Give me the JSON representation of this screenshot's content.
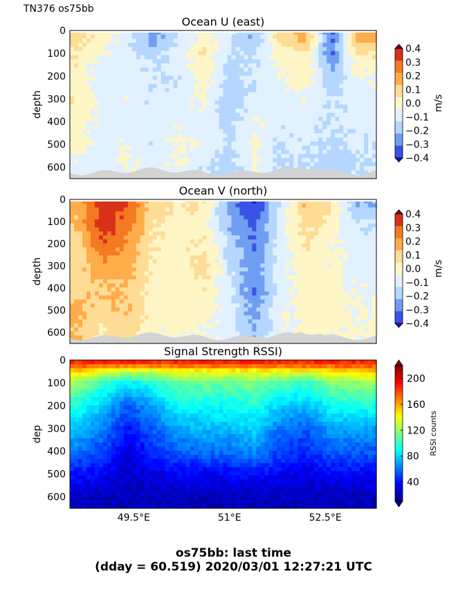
{
  "header_label": "TN376 os75bb",
  "caption": {
    "line1": "os75bb: last time",
    "line2": "(dday = 60.519) 2020/03/01 12:27:21 UTC"
  },
  "colors": {
    "topo_fill": "#d3d3d3",
    "rssi_colormap": "jet",
    "velocity_levels": [
      "#2a0ad6",
      "#3a52e6",
      "#6f9ef2",
      "#b5d7ff",
      "#e2f1ff",
      "#fff6c8",
      "#ffdc96",
      "#ffad4a",
      "#f47a22",
      "#d9301a",
      "#80040e"
    ]
  },
  "chart_data": [
    {
      "type": "heatmap",
      "title": "Ocean U (east)",
      "xlabel": "",
      "ylabel": "depth",
      "y_ticks": [
        "0",
        "100",
        "200",
        "300",
        "400",
        "500",
        "600"
      ],
      "y_tick_values": [
        0,
        100,
        200,
        300,
        400,
        500,
        600
      ],
      "ylim": [
        650,
        0
      ],
      "xlim": [
        48.5,
        53.3
      ],
      "x_ticks": [
        "49.5°E",
        "51°E",
        "52.5°E"
      ],
      "x_tick_values": [
        49.5,
        51.0,
        52.5
      ],
      "show_x_tick_labels": false,
      "colorbar": {
        "label": "m/s",
        "ticks": [
          "0.4",
          "0.3",
          "0.2",
          "0.1",
          "0.0",
          "−0.1",
          "−0.2",
          "−0.3",
          "−0.4"
        ],
        "range": [
          -0.4,
          0.4
        ]
      },
      "x": [
        48.6,
        49.0,
        49.4,
        49.8,
        50.2,
        50.6,
        51.0,
        51.4,
        51.8,
        52.2,
        52.6,
        53.0
      ],
      "depths": [
        30,
        100,
        200,
        300,
        400,
        500,
        600
      ],
      "values": [
        [
          0.15,
          0.05,
          -0.05,
          -0.25,
          -0.1,
          0.05,
          -0.08,
          -0.2,
          0.15,
          0.25,
          -0.35,
          0.25
        ],
        [
          0.1,
          0.0,
          -0.08,
          -0.15,
          -0.05,
          0.1,
          -0.1,
          -0.12,
          0.05,
          0.1,
          -0.3,
          0.1
        ],
        [
          0.05,
          -0.05,
          -0.05,
          -0.08,
          -0.1,
          0.05,
          -0.15,
          -0.1,
          0.0,
          0.05,
          -0.18,
          0.0
        ],
        [
          0.1,
          -0.05,
          -0.02,
          -0.1,
          -0.05,
          0.02,
          -0.18,
          -0.05,
          -0.05,
          0.0,
          -0.12,
          -0.05
        ],
        [
          0.05,
          -0.02,
          -0.05,
          -0.05,
          -0.02,
          -0.05,
          -0.15,
          0.0,
          -0.08,
          -0.05,
          -0.1,
          -0.05
        ],
        [
          0.05,
          -0.05,
          0.0,
          -0.08,
          0.02,
          -0.02,
          -0.12,
          0.02,
          -0.1,
          -0.08,
          -0.12,
          -0.1
        ],
        [
          -0.05,
          -0.08,
          0.02,
          -0.05,
          0.0,
          -0.1,
          -0.15,
          0.0,
          -0.12,
          -0.1,
          -0.15,
          -0.12
        ]
      ]
    },
    {
      "type": "heatmap",
      "title": "Ocean V (north)",
      "xlabel": "",
      "ylabel": "depth",
      "y_ticks": [
        "0",
        "100",
        "200",
        "300",
        "400",
        "500",
        "600"
      ],
      "y_tick_values": [
        0,
        100,
        200,
        300,
        400,
        500,
        600
      ],
      "ylim": [
        650,
        0
      ],
      "xlim": [
        48.5,
        53.3
      ],
      "x_ticks": [
        "49.5°E",
        "51°E",
        "52.5°E"
      ],
      "x_tick_values": [
        49.5,
        51.0,
        52.5
      ],
      "show_x_tick_labels": false,
      "colorbar": {
        "label": "m/s",
        "ticks": [
          "0.4",
          "0.3",
          "0.2",
          "0.1",
          "0.0",
          "−0.1",
          "−0.2",
          "−0.3",
          "−0.4"
        ],
        "range": [
          -0.4,
          0.4
        ]
      },
      "x": [
        48.6,
        49.0,
        49.4,
        49.8,
        50.2,
        50.6,
        51.0,
        51.4,
        51.8,
        52.2,
        52.6,
        53.0
      ],
      "depths": [
        30,
        100,
        200,
        300,
        400,
        500,
        600
      ],
      "values": [
        [
          0.25,
          0.45,
          0.4,
          0.15,
          0.1,
          0.1,
          -0.25,
          -0.4,
          -0.1,
          0.2,
          0.1,
          -0.2
        ],
        [
          0.2,
          0.45,
          0.35,
          0.12,
          0.05,
          0.05,
          -0.2,
          -0.35,
          -0.05,
          0.15,
          0.05,
          -0.1
        ],
        [
          0.15,
          0.4,
          0.3,
          0.1,
          0.05,
          0.1,
          -0.15,
          -0.3,
          -0.05,
          0.1,
          0.02,
          -0.05
        ],
        [
          0.15,
          0.25,
          0.25,
          0.08,
          0.05,
          0.15,
          -0.1,
          -0.25,
          -0.05,
          0.05,
          0.02,
          -0.05
        ],
        [
          0.15,
          0.2,
          0.2,
          0.05,
          0.02,
          0.08,
          -0.08,
          -0.3,
          -0.05,
          0.05,
          0.05,
          -0.02
        ],
        [
          0.25,
          0.15,
          0.2,
          0.05,
          0.05,
          0.05,
          -0.05,
          -0.25,
          -0.02,
          0.05,
          0.05,
          0.0
        ],
        [
          0.2,
          0.1,
          0.15,
          0.02,
          0.02,
          0.0,
          -0.05,
          -0.2,
          -0.02,
          0.02,
          0.02,
          0.02
        ]
      ]
    },
    {
      "type": "heatmap",
      "title": "Signal Strength RSSI)",
      "xlabel": "",
      "ylabel": "dep",
      "y_ticks": [
        "0",
        "100",
        "200",
        "300",
        "400",
        "500",
        "600"
      ],
      "y_tick_values": [
        0,
        100,
        200,
        300,
        400,
        500,
        600
      ],
      "ylim": [
        650,
        0
      ],
      "xlim": [
        48.5,
        53.3
      ],
      "x_ticks": [
        "49.5°E",
        "51°E",
        "52.5°E"
      ],
      "x_tick_values": [
        49.5,
        51.0,
        52.5
      ],
      "show_x_tick_labels": true,
      "colorbar": {
        "label": "RSSI counts",
        "ticks": [
          "200",
          "160",
          "120",
          "80",
          "40"
        ],
        "range": [
          10,
          220
        ]
      },
      "x": [
        48.6,
        49.0,
        49.4,
        49.8,
        50.2,
        50.6,
        51.0,
        51.4,
        51.8,
        52.2,
        52.6,
        53.0
      ],
      "depths": [
        15,
        50,
        100,
        200,
        300,
        400,
        500,
        600
      ],
      "values": [
        [
          185,
          185,
          185,
          185,
          185,
          185,
          185,
          185,
          185,
          185,
          185,
          185
        ],
        [
          150,
          140,
          130,
          130,
          140,
          140,
          140,
          140,
          140,
          140,
          145,
          150
        ],
        [
          120,
          100,
          85,
          95,
          110,
          110,
          110,
          115,
          105,
          100,
          115,
          120
        ],
        [
          95,
          80,
          55,
          70,
          90,
          90,
          90,
          95,
          80,
          75,
          90,
          95
        ],
        [
          75,
          65,
          40,
          55,
          70,
          75,
          75,
          80,
          60,
          55,
          70,
          70
        ],
        [
          60,
          50,
          30,
          45,
          55,
          60,
          60,
          65,
          50,
          45,
          55,
          55
        ],
        [
          40,
          35,
          25,
          30,
          35,
          35,
          35,
          40,
          35,
          30,
          35,
          35
        ],
        [
          25,
          22,
          20,
          22,
          22,
          22,
          22,
          22,
          22,
          22,
          22,
          22
        ]
      ]
    }
  ]
}
